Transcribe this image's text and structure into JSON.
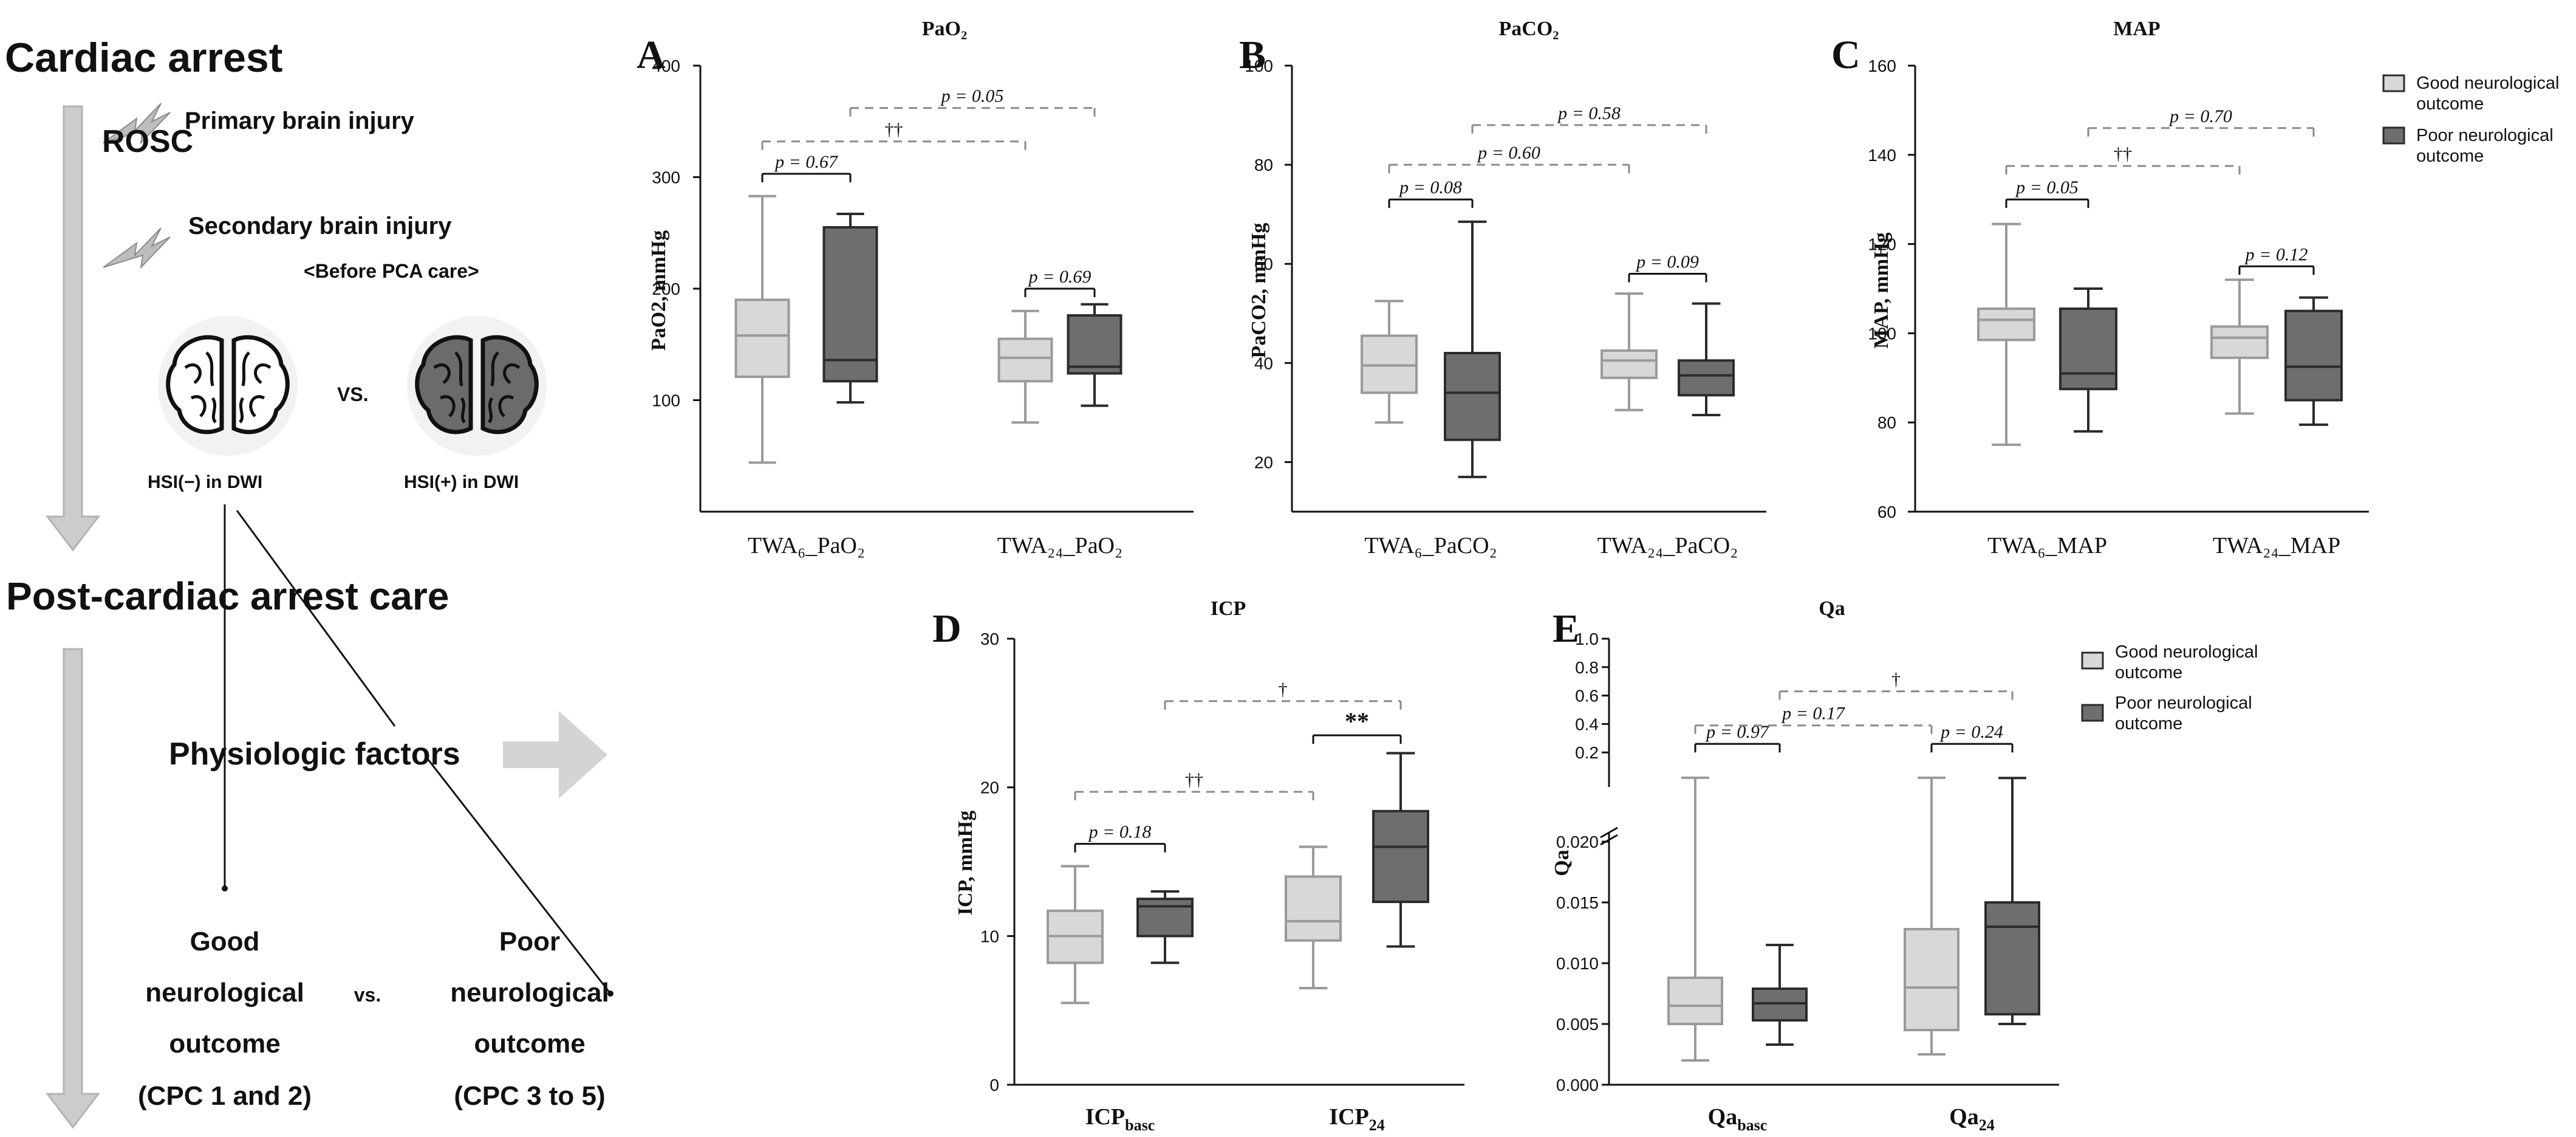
{
  "colors": {
    "good": "#d8d8d8",
    "poor": "#6e6e6e",
    "good_line": "#9a9a9a",
    "poor_line": "#2b2b2b",
    "arrow": "#cccccc",
    "arrow_line": "#b3b3b3",
    "dash": "#8a8a8a"
  },
  "diagram": {
    "title": "Cardiac arrest",
    "primary": "Primary brain injury",
    "rosc": "ROSC",
    "secondary": "Secondary brain injury",
    "before": "<Before PCA care>",
    "vs": "VS.",
    "hsi_neg": "HSI(−) in DWI",
    "hsi_pos": "HSI(+) in DWI",
    "care": "Post-cardiac arrest care",
    "physio": "Physiologic factors",
    "good_lines": [
      "Good",
      "neurological",
      "outcome",
      "(CPC 1 and 2)"
    ],
    "poor_lines": [
      "Poor",
      "neurological",
      "outcome",
      "(CPC 3 to 5)"
    ],
    "vs2": "vs."
  },
  "legend": {
    "good": [
      "Good neurological",
      "outcome"
    ],
    "poor": [
      "Poor neurological",
      "outcome"
    ]
  },
  "chart_data": [
    {
      "panel": "A",
      "title": "PaO₂",
      "type": "box",
      "ylabel": "PaO2, mmHg",
      "ylim": [
        0,
        400
      ],
      "yticks": [
        100,
        200,
        300,
        400
      ],
      "categories": [
        {
          "label": "TWA₆_PaO₂",
          "good": {
            "min": 44,
            "q1": 121,
            "median": 158,
            "q3": 190,
            "max": 283
          },
          "poor": {
            "min": 98,
            "q1": 117,
            "median": 136,
            "q3": 255,
            "max": 267
          }
        },
        {
          "label": "TWA₂₄_PaO₂",
          "good": {
            "min": 80,
            "q1": 117,
            "median": 138,
            "q3": 155,
            "max": 180
          },
          "poor": {
            "min": 95,
            "q1": 124,
            "median": 130,
            "q3": 176,
            "max": 186
          }
        }
      ],
      "annotations": [
        {
          "from": [
            "c0",
            "good"
          ],
          "to": [
            "c0",
            "poor"
          ],
          "y": 303,
          "text": "p = 0.67",
          "style": "solid"
        },
        {
          "from": [
            "c0",
            "good"
          ],
          "to": [
            "c1",
            "good"
          ],
          "y": 332,
          "text": "††",
          "style": "dashed"
        },
        {
          "from": [
            "c0",
            "poor"
          ],
          "to": [
            "c1",
            "poor"
          ],
          "y": 362,
          "text": "p = 0.05",
          "style": "dashed"
        },
        {
          "from": [
            "c1",
            "good"
          ],
          "to": [
            "c1",
            "poor"
          ],
          "y": 200,
          "text": "p = 0.69",
          "style": "solid"
        }
      ]
    },
    {
      "panel": "B",
      "title": "PaCO₂",
      "type": "box",
      "ylabel": "PaCO2, mmHg",
      "ylim": [
        10,
        100
      ],
      "yticks": [
        20,
        40,
        60,
        80,
        100
      ],
      "categories": [
        {
          "label": "TWA₆_PaCO₂",
          "good": {
            "min": 28,
            "q1": 34,
            "median": 39.5,
            "q3": 45.5,
            "max": 52.5
          },
          "poor": {
            "min": 17,
            "q1": 24.5,
            "median": 34,
            "q3": 42,
            "max": 68.5
          }
        },
        {
          "label": "TWA₂₄_PaCO₂",
          "good": {
            "min": 30.5,
            "q1": 37,
            "median": 40.5,
            "q3": 42.5,
            "max": 54
          },
          "poor": {
            "min": 29.5,
            "q1": 33.5,
            "median": 37.5,
            "q3": 40.5,
            "max": 52
          }
        }
      ],
      "annotations": [
        {
          "from": [
            "c0",
            "good"
          ],
          "to": [
            "c0",
            "poor"
          ],
          "y": 73,
          "text": "p = 0.08",
          "style": "solid"
        },
        {
          "from": [
            "c0",
            "good"
          ],
          "to": [
            "c1",
            "good"
          ],
          "y": 80,
          "text": "p = 0.60",
          "style": "dashed"
        },
        {
          "from": [
            "c0",
            "poor"
          ],
          "to": [
            "c1",
            "poor"
          ],
          "y": 88,
          "text": "p = 0.58",
          "style": "dashed"
        },
        {
          "from": [
            "c1",
            "good"
          ],
          "to": [
            "c1",
            "poor"
          ],
          "y": 58,
          "text": "p = 0.09",
          "style": "solid"
        }
      ]
    },
    {
      "panel": "C",
      "title": "MAP",
      "type": "box",
      "ylabel": "MAP, mmHg",
      "ylim": [
        60,
        160
      ],
      "yticks": [
        60,
        80,
        100,
        120,
        140,
        160
      ],
      "categories": [
        {
          "label": "TWA₆_MAP",
          "good": {
            "min": 75,
            "q1": 98.5,
            "median": 103,
            "q3": 105.5,
            "max": 124.5
          },
          "poor": {
            "min": 78,
            "q1": 87.5,
            "median": 91,
            "q3": 105.5,
            "max": 110
          }
        },
        {
          "label": "TWA₂₄_MAP",
          "good": {
            "min": 82,
            "q1": 94.5,
            "median": 99,
            "q3": 101.5,
            "max": 112
          },
          "poor": {
            "min": 79.5,
            "q1": 85,
            "median": 92.5,
            "q3": 105,
            "max": 108
          }
        }
      ],
      "annotations": [
        {
          "from": [
            "c0",
            "good"
          ],
          "to": [
            "c0",
            "poor"
          ],
          "y": 130,
          "text": "p = 0.05",
          "style": "solid"
        },
        {
          "from": [
            "c0",
            "good"
          ],
          "to": [
            "c1",
            "good"
          ],
          "y": 137.5,
          "text": "††",
          "style": "dashed"
        },
        {
          "from": [
            "c0",
            "poor"
          ],
          "to": [
            "c1",
            "poor"
          ],
          "y": 146,
          "text": "p = 0.70",
          "style": "dashed"
        },
        {
          "from": [
            "c1",
            "good"
          ],
          "to": [
            "c1",
            "poor"
          ],
          "y": 115,
          "text": "p = 0.12",
          "style": "solid"
        }
      ]
    },
    {
      "panel": "D",
      "title": "ICP",
      "type": "box",
      "ylabel": "ICP, mmHg",
      "ylim": [
        0,
        30
      ],
      "yticks": [
        0,
        10,
        20,
        30
      ],
      "categories": [
        {
          "label": "ICP",
          "sub": "basc",
          "good": {
            "min": 5.5,
            "q1": 8.2,
            "median": 10,
            "q3": 11.7,
            "max": 14.7
          },
          "poor": {
            "min": 8.2,
            "q1": 10,
            "median": 12,
            "q3": 12.5,
            "max": 13
          }
        },
        {
          "label": "ICP",
          "sub": "24",
          "good": {
            "min": 6.5,
            "q1": 9.7,
            "median": 11,
            "q3": 14,
            "max": 16
          },
          "poor": {
            "min": 9.3,
            "q1": 12.3,
            "median": 16,
            "q3": 18.4,
            "max": 22.3
          }
        }
      ],
      "annotations": [
        {
          "from": [
            "c0",
            "good"
          ],
          "to": [
            "c0",
            "poor"
          ],
          "y": 16.2,
          "text": "p = 0.18",
          "style": "solid"
        },
        {
          "from": [
            "c0",
            "good"
          ],
          "to": [
            "c1",
            "good"
          ],
          "y": 19.7,
          "text": "††",
          "style": "dashed"
        },
        {
          "from": [
            "c0",
            "poor"
          ],
          "to": [
            "c1",
            "poor"
          ],
          "y": 25.8,
          "text": "†",
          "style": "dashed"
        },
        {
          "from": [
            "c1",
            "good"
          ],
          "to": [
            "c1",
            "poor"
          ],
          "y": 23.5,
          "text": "**",
          "style": "solid"
        }
      ]
    },
    {
      "panel": "E",
      "title": "Qa",
      "type": "box",
      "ylabel": "Qa",
      "yaxis": "broken",
      "lower_ylim": [
        0,
        0.02
      ],
      "lower_yticks": [
        "0.000",
        "0.005",
        "0.010",
        "0.015",
        "0.020"
      ],
      "upper_ylim": [
        0,
        1
      ],
      "upper_yticks": [
        "0.2",
        "0.4",
        "0.6",
        "0.8",
        "1.0"
      ],
      "categories": [
        {
          "label": "Qa",
          "sub": "basc",
          "good": {
            "min": 0.002,
            "q1": 0.005,
            "median": 0.0065,
            "q3": 0.0088,
            "max": 0.0218
          },
          "poor": {
            "min": 0.0033,
            "q1": 0.0053,
            "median": 0.0067,
            "q3": 0.0079,
            "max": 0.0115
          }
        },
        {
          "label": "Qa",
          "sub": "24",
          "good": {
            "min": 0.0025,
            "q1": 0.0045,
            "median": 0.008,
            "q3": 0.0128,
            "max": 0.0218
          },
          "poor": {
            "min": 0.005,
            "q1": 0.0058,
            "median": 0.013,
            "q3": 0.015,
            "max": 0.0205
          }
        }
      ],
      "annotations": [
        {
          "from": [
            "c0",
            "good"
          ],
          "to": [
            "c0",
            "poor"
          ],
          "y": 0.26,
          "text": "p = 0.97",
          "style": "solid"
        },
        {
          "from": [
            "c0",
            "good"
          ],
          "to": [
            "c1",
            "good"
          ],
          "y": 0.39,
          "text": "p = 0.17",
          "style": "dashed"
        },
        {
          "from": [
            "c0",
            "poor"
          ],
          "to": [
            "c1",
            "poor"
          ],
          "y": 0.63,
          "text": "†",
          "style": "dashed"
        },
        {
          "from": [
            "c1",
            "good"
          ],
          "to": [
            "c1",
            "poor"
          ],
          "y": 0.26,
          "text": "p = 0.24",
          "style": "solid"
        }
      ]
    }
  ]
}
